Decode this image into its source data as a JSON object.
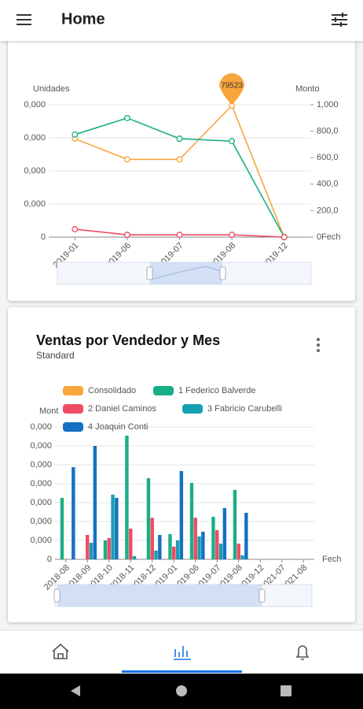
{
  "app_bar": {
    "title": "Home"
  },
  "chart_data": [
    {
      "type": "line",
      "y_label": "Unidades",
      "y2_label": "Monto",
      "x_label": "Fech",
      "annotation": "79523",
      "categories": [
        "2019-01",
        "2019-06",
        "2019-07",
        "2019-08",
        "2019-12"
      ],
      "series": [
        {
          "color": "#f8a63c",
          "values": [
            59500,
            47000,
            47000,
            79523,
            0
          ]
        },
        {
          "color": "#1aae87",
          "values": [
            62000,
            72000,
            59500,
            58000,
            0
          ]
        },
        {
          "color": "#ef4c63",
          "values": [
            4800,
            1400,
            1400,
            1400,
            0
          ]
        }
      ],
      "ylim": [
        0,
        80000
      ],
      "yticks": [
        0,
        {
          "value": 20000,
          "label": "0,000"
        },
        {
          "value": 40000,
          "label": "0,000"
        },
        {
          "value": 60000,
          "label": "0,000"
        },
        {
          "value": 80000,
          "label": "0,000"
        }
      ],
      "y2lim": [
        0,
        1000
      ],
      "y2ticks": [
        0,
        {
          "value": 200,
          "label": "200,0"
        },
        {
          "value": 400,
          "label": "400,0"
        },
        {
          "value": 600,
          "label": "600,0"
        },
        {
          "value": 800,
          "label": "800,0"
        },
        {
          "value": 1000,
          "label": "1,000"
        }
      ],
      "grid": true
    },
    {
      "type": "bar",
      "title": "Ventas por Vendedor y Mes",
      "subtitle": "Standard",
      "y_label": "Mont",
      "x_label": "Fech",
      "categories": [
        "2018-08",
        "2018-09",
        "2018-10",
        "2018-11",
        "2018-12",
        "2019-01",
        "2019-06",
        "2019-07",
        "2019-08",
        "2019-12",
        "2021-07",
        "2021-08"
      ],
      "series": [
        {
          "name": "Consolidado",
          "color": "#f8a63c",
          "values": [
            0,
            0,
            0,
            0,
            0,
            0,
            0,
            0,
            0,
            0,
            0,
            0
          ]
        },
        {
          "name": "1 Federico Balverde",
          "color": "#1aae87",
          "values": [
            32500,
            0,
            10000,
            65400,
            42900,
            13300,
            40400,
            22500,
            36700,
            0,
            0,
            0
          ]
        },
        {
          "name": "2 Daniel Caminos",
          "color": "#ef4c63",
          "values": [
            0,
            12900,
            11250,
            16250,
            22000,
            6700,
            22000,
            15400,
            8300,
            0,
            0,
            0
          ]
        },
        {
          "name": "3 Fabricio Carubelli",
          "color": "#16a0b2",
          "values": [
            0,
            8750,
            34200,
            1700,
            4600,
            10000,
            12100,
            8300,
            2100,
            0,
            0,
            0
          ]
        },
        {
          "name": "4 Joaquin Conti",
          "color": "#1570c2",
          "values": [
            48750,
            60000,
            32500,
            0,
            12900,
            46700,
            14600,
            27100,
            24600,
            0,
            0,
            0
          ]
        }
      ],
      "ylim": [
        0,
        70000
      ],
      "yticks": [
        0,
        {
          "value": 10000,
          "label": "0,000"
        },
        {
          "value": 20000,
          "label": "0,000"
        },
        {
          "value": 30000,
          "label": "0,000"
        },
        {
          "value": 40000,
          "label": "0,000"
        },
        {
          "value": 50000,
          "label": "0,000"
        },
        {
          "value": 60000,
          "label": "0,000"
        },
        {
          "value": 70000,
          "label": "0,000"
        }
      ],
      "grid": true
    }
  ]
}
